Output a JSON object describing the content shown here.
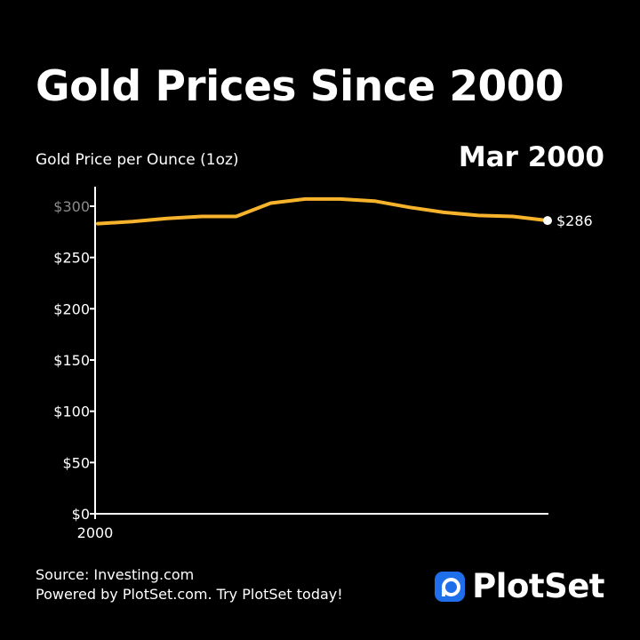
{
  "header": {
    "title": "Gold Prices Since 2000",
    "current_period": "Mar 2000"
  },
  "chart_data": {
    "type": "line",
    "title": "Gold Prices Since 2000",
    "ylabel": "Gold Price per Ounce (1oz)",
    "xlabel": "",
    "x_tick_labels": [
      "2000"
    ],
    "y_ticks": [
      0,
      50,
      100,
      150,
      200,
      250,
      300
    ],
    "y_tick_labels": [
      "$0",
      "$50",
      "$100",
      "$150",
      "$200",
      "$250",
      "$300"
    ],
    "ylim": [
      0,
      300
    ],
    "grid": false,
    "series": [
      {
        "color": "#f6b32b",
        "values": [
          283,
          285,
          288,
          290,
          290,
          303,
          307,
          307,
          305,
          299,
          294,
          291,
          290,
          286
        ]
      }
    ],
    "end_label": "$286",
    "end_marker_color": "#ffffff"
  },
  "footer": {
    "source": "Source: Investing.com",
    "powered_by": "Powered by PlotSet.com. Try PlotSet today!"
  },
  "brand": {
    "name": "PlotSet",
    "color": "#1f6feb"
  }
}
